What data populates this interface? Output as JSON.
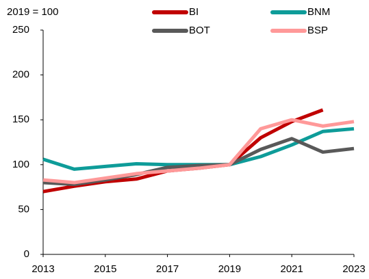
{
  "chart_data": {
    "type": "line",
    "annotation": "2019 = 100",
    "x": [
      2013,
      2014,
      2015,
      2016,
      2017,
      2018,
      2019,
      2020,
      2021,
      2022,
      2023
    ],
    "series": [
      {
        "name": "BI",
        "color": "#c00000",
        "values": [
          70,
          76,
          81,
          84,
          93,
          96,
          100,
          130,
          148,
          161,
          null
        ]
      },
      {
        "name": "BNM",
        "color": "#0e9c99",
        "values": [
          106,
          95,
          98,
          101,
          100,
          100,
          100,
          109,
          122,
          137,
          140
        ]
      },
      {
        "name": "BOT",
        "color": "#595959",
        "values": [
          80,
          78,
          83,
          89,
          97,
          99,
          100,
          117,
          129,
          114,
          118
        ]
      },
      {
        "name": "BSP",
        "color": "#ff9999",
        "values": [
          83,
          80,
          85,
          90,
          93,
          96,
          100,
          140,
          150,
          143,
          148
        ]
      }
    ],
    "xlim": [
      2013,
      2023
    ],
    "xticks": [
      2013,
      2015,
      2017,
      2019,
      2021,
      2023
    ],
    "ylim": [
      0,
      250
    ],
    "yticks": [
      0,
      50,
      100,
      150,
      200,
      250
    ],
    "grid": false,
    "legend": "top"
  }
}
